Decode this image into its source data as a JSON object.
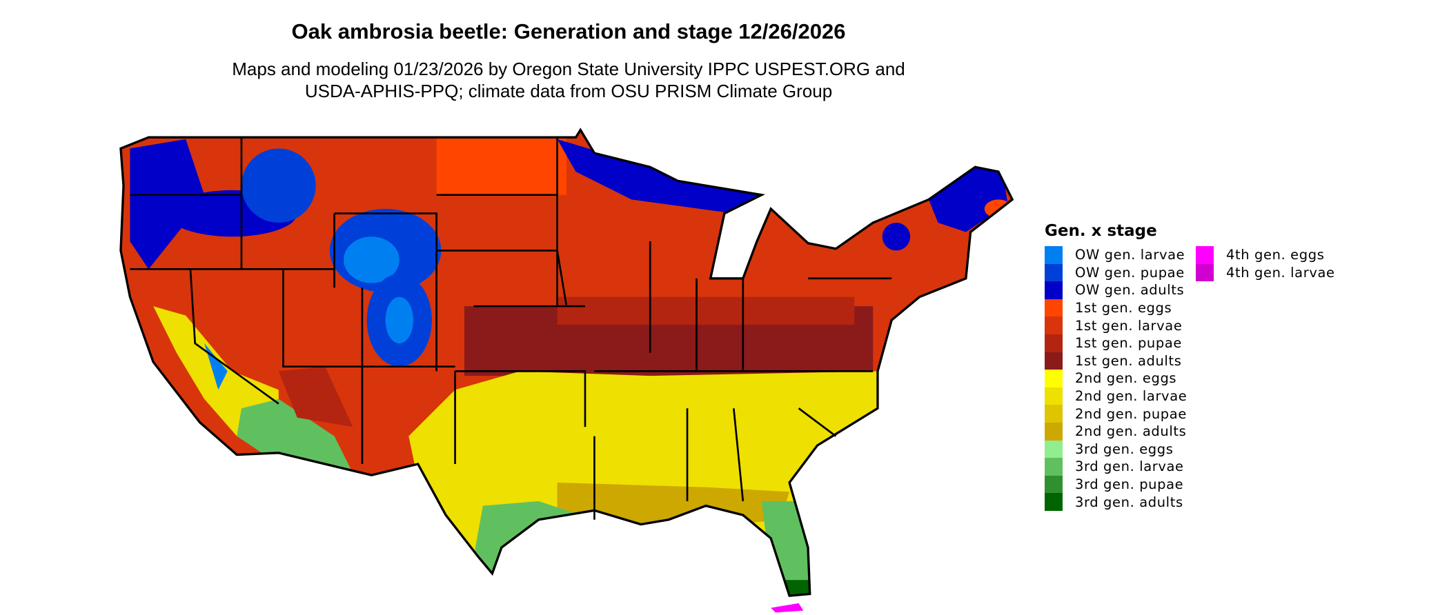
{
  "title": "Oak ambrosia beetle: Generation and stage 12/26/2026",
  "subtitle_line1": "Maps and modeling 01/23/2026 by Oregon State University IPPC USPEST.ORG and",
  "subtitle_line2": "USDA-APHIS-PPQ; climate data from OSU PRISM Climate Group",
  "legend": {
    "title": "Gen. x stage",
    "columns": [
      [
        {
          "label": "OW gen. larvae",
          "color": "#0080F0"
        },
        {
          "label": "OW gen. pupae",
          "color": "#0040D8"
        },
        {
          "label": "OW gen. adults",
          "color": "#0000C8"
        },
        {
          "label": "1st gen. eggs",
          "color": "#FF4500"
        },
        {
          "label": "1st gen. larvae",
          "color": "#D8350C"
        },
        {
          "label": "1st gen. pupae",
          "color": "#B32510"
        },
        {
          "label": "1st gen. adults",
          "color": "#8B1A1A"
        },
        {
          "label": "2nd gen. eggs",
          "color": "#FFFF00"
        },
        {
          "label": "2nd gen. larvae",
          "color": "#EEE000"
        },
        {
          "label": "2nd gen. pupae",
          "color": "#DFC400"
        },
        {
          "label": "2nd gen. adults",
          "color": "#CCA800"
        },
        {
          "label": "3rd gen. eggs",
          "color": "#90EE90"
        },
        {
          "label": "3rd gen. larvae",
          "color": "#60C060"
        },
        {
          "label": "3rd gen. pupae",
          "color": "#309030"
        },
        {
          "label": "3rd gen. adults",
          "color": "#006400"
        }
      ],
      [
        {
          "label": "4th gen. eggs",
          "color": "#FF00FF"
        },
        {
          "label": "4th gen. larvae",
          "color": "#D000D0"
        }
      ]
    ]
  }
}
